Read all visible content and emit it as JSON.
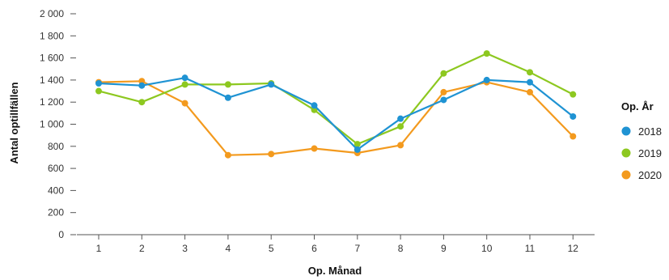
{
  "chart_data": {
    "type": "line",
    "title": "",
    "xlabel": "Op. Månad",
    "ylabel": "Antal optillfällen",
    "x": [
      1,
      2,
      3,
      4,
      5,
      6,
      7,
      8,
      9,
      10,
      11,
      12
    ],
    "xtick_labels": [
      "1",
      "2",
      "3",
      "4",
      "5",
      "6",
      "7",
      "8",
      "9",
      "10",
      "11",
      "12"
    ],
    "ylim": [
      0,
      2000
    ],
    "yticks": [
      0,
      200,
      400,
      600,
      800,
      1000,
      1200,
      1400,
      1600,
      1800,
      2000
    ],
    "ytick_labels": [
      "0",
      "200",
      "400",
      "600",
      "800",
      "1 000",
      "1 200",
      "1 400",
      "1 600",
      "1 800",
      "2 000"
    ],
    "grid": false,
    "legend": {
      "title": "Op. År",
      "placement": "right"
    },
    "series": [
      {
        "name": "2018",
        "color": "#1f93d3",
        "values": [
          1370,
          1350,
          1420,
          1240,
          1360,
          1170,
          770,
          1050,
          1220,
          1400,
          1380,
          1070
        ]
      },
      {
        "name": "2019",
        "color": "#8dc820",
        "values": [
          1300,
          1200,
          1360,
          1360,
          1370,
          1130,
          820,
          980,
          1460,
          1640,
          1470,
          1270
        ]
      },
      {
        "name": "2020",
        "color": "#f39a1e",
        "values": [
          1380,
          1390,
          1190,
          720,
          730,
          780,
          740,
          810,
          1290,
          1380,
          1290,
          890
        ]
      }
    ]
  }
}
